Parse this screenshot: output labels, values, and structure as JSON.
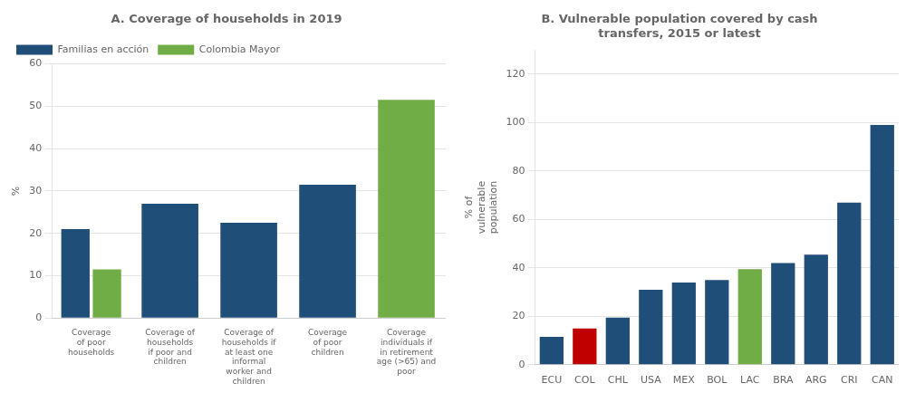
{
  "chart_data": [
    {
      "type": "bar",
      "title": "A. Coverage of households in 2019",
      "ylabel": "%",
      "categories": [
        "Coverage\nof poor\nhouseholds",
        "Coverage of\nhouseholds\nif poor and\nchildren",
        "Coverage of\nhouseholds if\nat least one\ninformal\nworker and\nchildren",
        "Coverage\nof poor\nchildren",
        "Coverage\nindividuals if\nin retirement\nage (>65) and\npoor"
      ],
      "series": [
        {
          "name": "Familias en acción",
          "color": "#1F4E79",
          "values": [
            21.0,
            27.0,
            22.5,
            31.5,
            null
          ]
        },
        {
          "name": "Colombia Mayor",
          "color": "#70AD47",
          "values": [
            11.5,
            null,
            null,
            null,
            51.5
          ]
        }
      ],
      "ylim": [
        0,
        60
      ],
      "yticks": [
        0,
        10,
        20,
        30,
        40,
        50,
        60
      ],
      "grid": true,
      "legend": "upper left"
    },
    {
      "type": "bar",
      "title": "B. Vulnerable population covered by cash\ntransfers, 2015 or latest",
      "ylabel": "% of\nvulnerable\npopulation",
      "categories": [
        "ECU",
        "COL",
        "CHL",
        "USA",
        "MEX",
        "BOL",
        "LAC",
        "BRA",
        "ARG",
        "CRI",
        "CAN"
      ],
      "values": [
        11.5,
        15.0,
        19.5,
        31.0,
        34.0,
        35.0,
        39.5,
        42.0,
        45.5,
        67.0,
        99.0
      ],
      "colors": [
        "#1F4E79",
        "#C00000",
        "#1F4E79",
        "#1F4E79",
        "#1F4E79",
        "#1F4E79",
        "#70AD47",
        "#1F4E79",
        "#1F4E79",
        "#1F4E79",
        "#1F4E79"
      ],
      "ylim": [
        0,
        130
      ],
      "yticks": [
        0,
        20,
        40,
        60,
        80,
        100,
        120
      ],
      "grid": true
    }
  ]
}
